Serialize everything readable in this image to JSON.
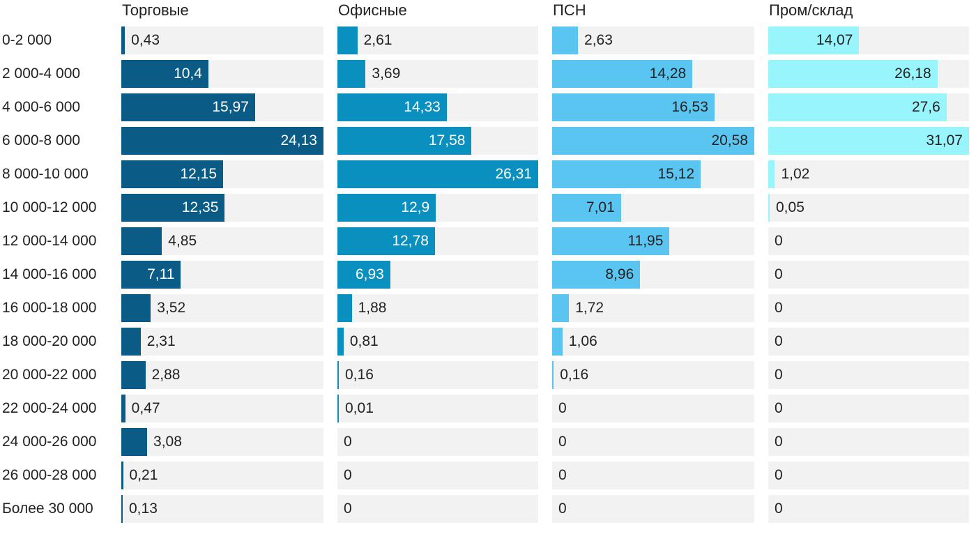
{
  "chart_data": {
    "type": "bar",
    "orientation": "horizontal",
    "layout": "small-multiples",
    "grid": false,
    "categories": [
      "0-2 000",
      "2 000-4 000",
      "4 000-6 000",
      "6 000-8 000",
      "8 000-10 000",
      "10 000-12 000",
      "12 000-14 000",
      "14 000-16 000",
      "16 000-18 000",
      "18 000-20 000",
      "20 000-22 000",
      "22 000-24 000",
      "24 000-26 000",
      "26 000-28 000",
      "Более 30 000"
    ],
    "series": [
      {
        "name": "Торговые",
        "color": "#0a5c86",
        "label_color_inside": "#ffffff",
        "values": [
          0.43,
          10.4,
          15.97,
          24.13,
          12.15,
          12.35,
          4.85,
          7.11,
          3.52,
          2.31,
          2.88,
          0.47,
          3.08,
          0.21,
          0.13
        ],
        "labels": [
          "0,43",
          "10,4",
          "15,97",
          "24,13",
          "12,15",
          "12,35",
          "4,85",
          "7,11",
          "3,52",
          "2,31",
          "2,88",
          "0,47",
          "3,08",
          "0,21",
          "0,13"
        ],
        "xlim": [
          0,
          24.13
        ]
      },
      {
        "name": "Офисные",
        "color": "#0a90bf",
        "label_color_inside": "#ffffff",
        "values": [
          2.61,
          3.69,
          14.33,
          17.58,
          26.31,
          12.9,
          12.78,
          6.93,
          1.88,
          0.81,
          0.16,
          0.01,
          0,
          0,
          0
        ],
        "labels": [
          "2,61",
          "3,69",
          "14,33",
          "17,58",
          "26,31",
          "12,9",
          "12,78",
          "6,93",
          "1,88",
          "0,81",
          "0,16",
          "0,01",
          "0",
          "0",
          "0"
        ],
        "xlim": [
          0,
          26.31
        ]
      },
      {
        "name": "ПСН",
        "color": "#5bc5f2",
        "label_color_inside": "#222222",
        "values": [
          2.63,
          14.28,
          16.53,
          20.58,
          15.12,
          7.01,
          11.95,
          8.96,
          1.72,
          1.06,
          0.16,
          0,
          0,
          0,
          0
        ],
        "labels": [
          "2,63",
          "14,28",
          "16,53",
          "20,58",
          "15,12",
          "7,01",
          "11,95",
          "8,96",
          "1,72",
          "1,06",
          "0,16",
          "0",
          "0",
          "0",
          "0"
        ],
        "xlim": [
          0,
          20.58
        ]
      },
      {
        "name": "Пром/склад",
        "color": "#97f5fb",
        "label_color_inside": "#222222",
        "values": [
          14.07,
          26.18,
          27.6,
          31.07,
          1.02,
          0.05,
          0,
          0,
          0,
          0,
          0,
          0,
          0,
          0,
          0
        ],
        "labels": [
          "14,07",
          "26,18",
          "27,6",
          "31,07",
          "1,02",
          "0,05",
          "0",
          "0",
          "0",
          "0",
          "0",
          "0",
          "0",
          "0",
          "0"
        ],
        "xlim": [
          0,
          31.07
        ]
      }
    ]
  }
}
